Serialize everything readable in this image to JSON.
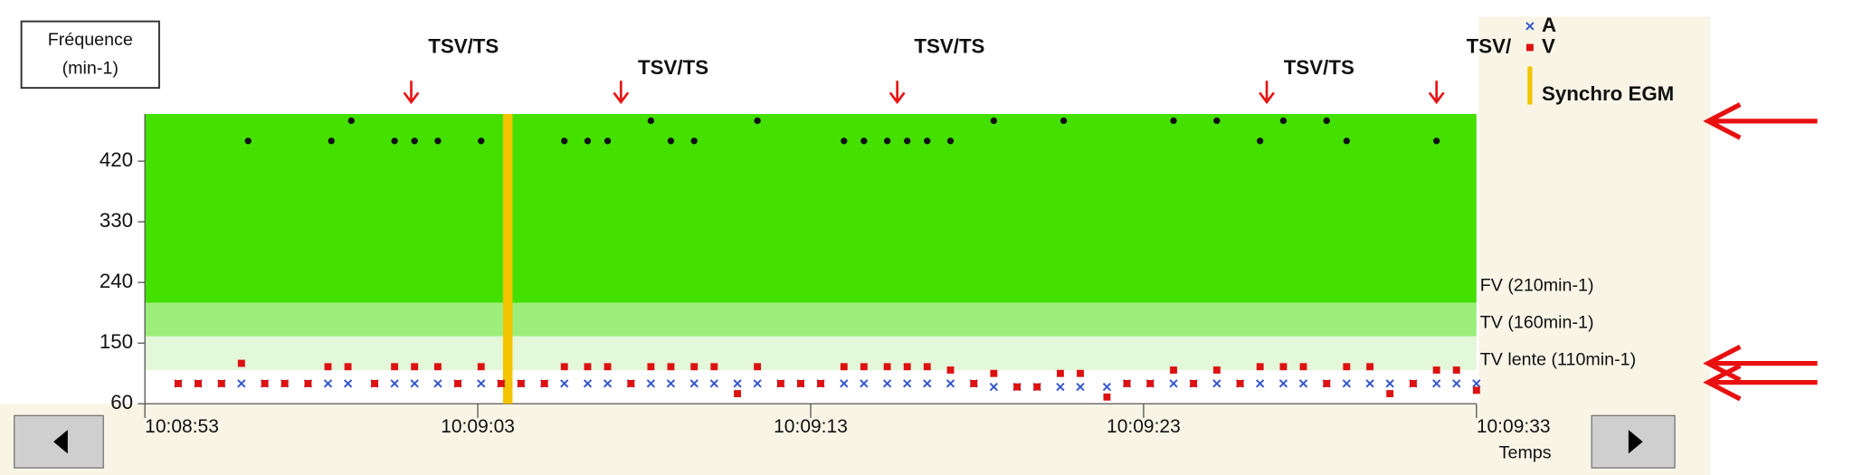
{
  "chart_data": {
    "type": "scatter",
    "y_title": [
      "Fréquence",
      "(min-1)"
    ],
    "x_label": "Temps",
    "xlim": [
      36533,
      36573
    ],
    "xticks": [
      {
        "value": 36533,
        "label": "10:08:53"
      },
      {
        "value": 36543,
        "label": "10:09:03"
      },
      {
        "value": 36553,
        "label": "10:09:13"
      },
      {
        "value": 36563,
        "label": "10:09:23"
      },
      {
        "value": 36573,
        "label": "10:09:33"
      }
    ],
    "ylim": [
      60,
      490
    ],
    "yticks": [
      60,
      150,
      240,
      330,
      420
    ],
    "zones": [
      {
        "label": "FV (210min-1)",
        "from": 210,
        "color": "#44e000"
      },
      {
        "label": "TV (160min-1)",
        "from": 160,
        "color": "#9cee7a"
      },
      {
        "label": "TV lente (110min-1)",
        "from": 110,
        "color": "#e3f7d9"
      }
    ],
    "series": [
      {
        "name": "A",
        "color": "#3355cc",
        "marker": "x",
        "x": [
          36534.0,
          36534.6,
          36535.3,
          36535.9,
          36536.6,
          36537.2,
          36537.9,
          36538.5,
          36539.1,
          36539.9,
          36540.5,
          36541.1,
          36541.8,
          36542.4,
          36543.1,
          36543.7,
          36544.3,
          36545.0,
          36545.6,
          36546.3,
          36546.9,
          36547.6,
          36548.2,
          36548.8,
          36549.5,
          36550.1,
          36550.8,
          36551.4,
          36552.1,
          36552.7,
          36553.3,
          36554.0,
          36554.6,
          36555.3,
          36555.9,
          36556.5,
          36557.2,
          36557.9,
          36558.5,
          36559.2,
          36559.8,
          36560.5,
          36561.1,
          36561.9,
          36562.5,
          36563.2,
          36563.9,
          36564.5,
          36565.2,
          36565.9,
          36566.5,
          36567.2,
          36567.8,
          36568.5,
          36569.1,
          36569.8,
          36570.4,
          36571.1,
          36571.8,
          36572.4,
          36573.0
        ],
        "values": [
          90,
          90,
          90,
          90,
          90,
          90,
          90,
          90,
          90,
          90,
          90,
          90,
          90,
          90,
          90,
          90,
          90,
          90,
          90,
          90,
          90,
          90,
          90,
          90,
          90,
          90,
          90,
          90,
          90,
          90,
          90,
          90,
          90,
          90,
          90,
          90,
          90,
          90,
          85,
          85,
          85,
          85,
          85,
          85,
          90,
          90,
          90,
          90,
          90,
          90,
          90,
          90,
          90,
          90,
          90,
          90,
          90,
          90,
          90,
          90,
          90
        ]
      },
      {
        "name": "V",
        "color": "#dd1111",
        "marker": "square",
        "x": [
          36534.0,
          36534.6,
          36535.3,
          36535.9,
          36536.6,
          36537.2,
          36537.9,
          36538.5,
          36539.1,
          36539.9,
          36540.5,
          36541.1,
          36541.8,
          36542.4,
          36543.1,
          36543.7,
          36544.3,
          36545.0,
          36545.6,
          36546.3,
          36546.9,
          36547.6,
          36548.2,
          36548.8,
          36549.5,
          36550.1,
          36550.8,
          36551.4,
          36552.1,
          36552.7,
          36553.3,
          36554.0,
          36554.6,
          36555.3,
          36555.9,
          36556.5,
          36557.2,
          36557.9,
          36558.5,
          36559.2,
          36559.8,
          36560.5,
          36561.1,
          36561.9,
          36562.5,
          36563.2,
          36563.9,
          36564.5,
          36565.2,
          36565.9,
          36566.5,
          36567.2,
          36567.8,
          36568.5,
          36569.1,
          36569.8,
          36570.4,
          36571.1,
          36571.8,
          36572.4,
          36573.0
        ],
        "values": [
          90,
          90,
          90,
          120,
          90,
          90,
          90,
          115,
          115,
          90,
          115,
          115,
          115,
          90,
          115,
          90,
          90,
          90,
          115,
          115,
          115,
          90,
          115,
          115,
          115,
          115,
          75,
          115,
          90,
          90,
          90,
          115,
          115,
          115,
          115,
          115,
          110,
          90,
          105,
          85,
          85,
          105,
          105,
          70,
          90,
          90,
          110,
          90,
          110,
          90,
          115,
          115,
          115,
          90,
          115,
          115,
          75,
          90,
          110,
          110,
          80
        ]
      },
      {
        "color": "#111111",
        "marker": "dot",
        "x": [
          36536.1,
          36538.6,
          36539.2,
          36540.5,
          36541.1,
          36541.8,
          36543.1,
          36545.6,
          36546.3,
          36546.9,
          36548.2,
          36548.8,
          36549.5,
          36551.4,
          36554.0,
          36554.6,
          36555.3,
          36555.9,
          36556.5,
          36557.2,
          36558.5,
          36560.6,
          36563.9,
          36565.2,
          36566.5,
          36567.2,
          36568.5,
          36569.1,
          36571.8
        ],
        "values": [
          450,
          450,
          480,
          450,
          450,
          450,
          450,
          450,
          450,
          450,
          480,
          450,
          450,
          480,
          450,
          450,
          450,
          450,
          450,
          450,
          480,
          480,
          480,
          480,
          450,
          480,
          480,
          450,
          450
        ]
      }
    ],
    "synchro": {
      "name": "Synchro EGM",
      "color": "#f5c400",
      "x": 36543.9
    },
    "annotations": [
      {
        "text": "TSV/TS",
        "x": 36541.0
      },
      {
        "text": "TSV/TS",
        "x": 36547.3
      },
      {
        "text": "TSV/TS",
        "x": 36555.6
      },
      {
        "text": "TSV/TS",
        "x": 36566.7
      },
      {
        "text": "TSV/",
        "x": 36571.8
      }
    ]
  }
}
